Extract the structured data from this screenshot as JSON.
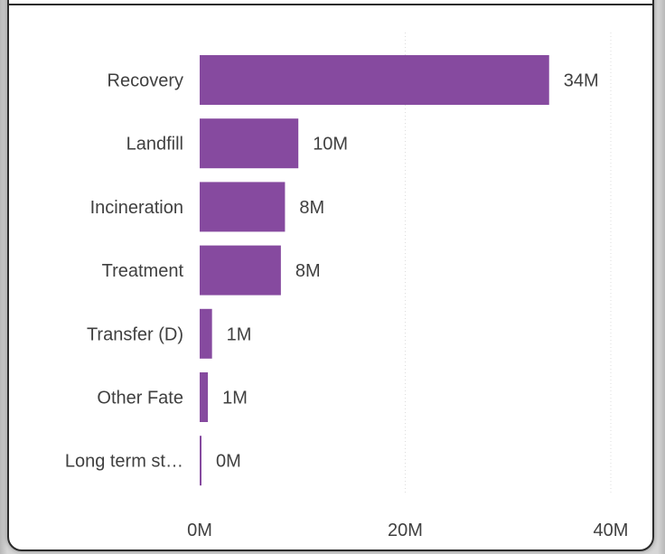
{
  "chart_data": {
    "type": "bar",
    "orientation": "horizontal",
    "categories": [
      "Recovery",
      "Landfill",
      "Incineration",
      "Treatment",
      "Transfer (D)",
      "Other Fate",
      "Long term st…"
    ],
    "values": [
      34,
      9.6,
      8.3,
      7.9,
      1.2,
      0.8,
      0.1
    ],
    "value_labels": [
      "34M",
      "10M",
      "8M",
      "8M",
      "1M",
      "1M",
      "0M"
    ],
    "xlim": [
      0,
      40
    ],
    "x_ticks": [
      {
        "value": 0,
        "label": "0M"
      },
      {
        "value": 20,
        "label": "20M"
      },
      {
        "value": 40,
        "label": "40M"
      }
    ],
    "grid": true,
    "bar_color": "#864a9f",
    "grid_color": "#dcdcdc",
    "text_color": "#404040"
  }
}
